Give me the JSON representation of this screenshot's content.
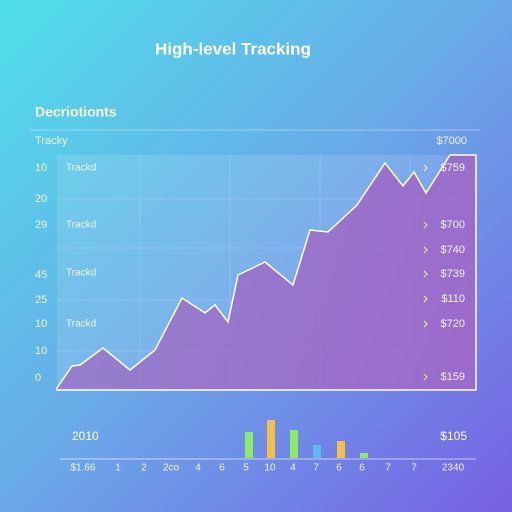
{
  "header": {
    "title": "High-level Tracking"
  },
  "panel": {
    "title": "Decriotionts",
    "top_left": "Tracky",
    "top_right": "$7000",
    "left_labels": [
      "10",
      "20",
      "29",
      "45",
      "25",
      "10",
      "10",
      "0"
    ],
    "inner_labels": [
      "Trackd",
      "Trackd",
      "Trackd",
      "Trackd"
    ],
    "right_labels": [
      "$759",
      "$700",
      "$740",
      "$739",
      "$110",
      "$720",
      "$159"
    ]
  },
  "footer": {
    "left": "2010",
    "right": "$105",
    "axis_labels": [
      "$1.66",
      "1",
      "2",
      "2co",
      "4",
      "6",
      "5",
      "10",
      "4",
      "7",
      "6",
      "6",
      "7",
      "7",
      "2340"
    ]
  }
}
